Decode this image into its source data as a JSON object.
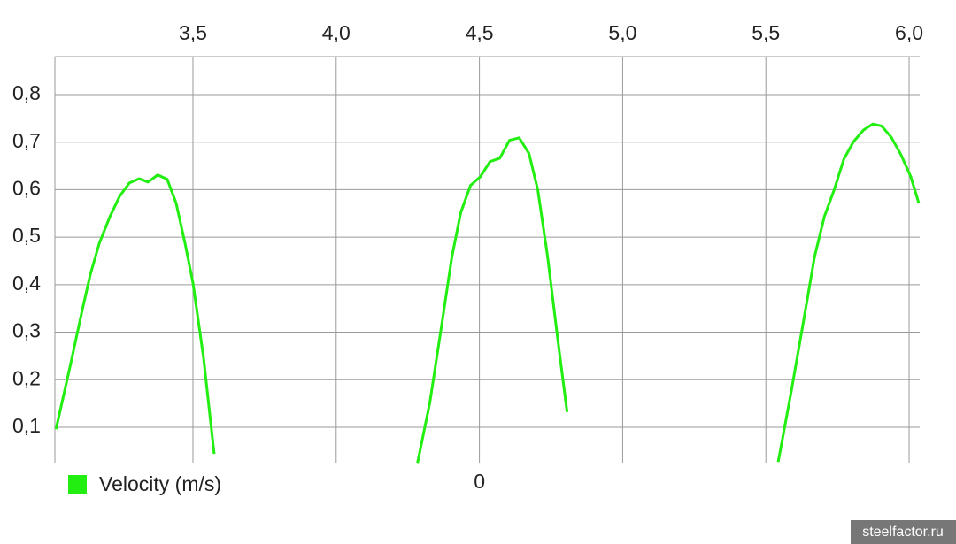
{
  "chart_data": {
    "type": "line",
    "xlim": [
      3.018,
      6.037
    ],
    "xticks": [
      {
        "value": 3.5,
        "label": "3,5"
      },
      {
        "value": 4.0,
        "label": "4,0"
      },
      {
        "value": 4.5,
        "label": "4,5"
      },
      {
        "value": 5.0,
        "label": "5,0"
      },
      {
        "value": 5.5,
        "label": "5,5"
      },
      {
        "value": 6.0,
        "label": "6,0"
      }
    ],
    "ylim": [
      0.0255,
      0.88
    ],
    "yticks": [
      {
        "value": 0.1,
        "label": "0,1"
      },
      {
        "value": 0.2,
        "label": "0,2"
      },
      {
        "value": 0.3,
        "label": "0,3"
      },
      {
        "value": 0.4,
        "label": "0,4"
      },
      {
        "value": 0.5,
        "label": "0,5"
      },
      {
        "value": 0.6,
        "label": "0,6"
      },
      {
        "value": 0.7,
        "label": "0,7"
      },
      {
        "value": 0.8,
        "label": "0,8"
      }
    ],
    "grid": true,
    "legend": "bottom-left",
    "x": [
      3.022,
      3.074,
      3.114,
      3.142,
      3.173,
      3.21,
      3.244,
      3.278,
      3.312,
      3.343,
      3.377,
      3.41,
      3.441,
      3.472,
      3.5,
      3.537,
      3.574,
      3.93,
      4.284,
      4.327,
      4.367,
      4.404,
      4.435,
      4.469,
      4.503,
      4.537,
      4.571,
      4.605,
      4.639,
      4.673,
      4.704,
      4.738,
      4.772,
      4.806,
      5.17,
      5.543,
      5.59,
      5.633,
      5.67,
      5.704,
      5.738,
      5.772,
      5.806,
      5.84,
      5.873,
      5.904,
      5.938,
      5.972,
      6.006,
      6.034
    ],
    "series": [
      {
        "name": "Velocity (m/s)",
        "color": "#22ee11",
        "values": [
          0.096,
          0.236,
          0.348,
          0.422,
          0.487,
          0.543,
          0.586,
          0.614,
          0.623,
          0.616,
          0.631,
          0.622,
          0.572,
          0.488,
          0.404,
          0.246,
          0.044,
          null,
          0.025,
          0.152,
          0.31,
          0.459,
          0.552,
          0.609,
          0.627,
          0.659,
          0.666,
          0.704,
          0.709,
          0.676,
          0.599,
          0.459,
          0.292,
          0.132,
          null,
          0.027,
          0.18,
          0.329,
          0.459,
          0.543,
          0.599,
          0.664,
          0.701,
          0.725,
          0.738,
          0.734,
          0.71,
          0.673,
          0.627,
          0.571
        ]
      }
    ],
    "annotations": [
      {
        "text": "0",
        "x": 4.5
      }
    ],
    "watermark": "steelfactor.ru"
  }
}
